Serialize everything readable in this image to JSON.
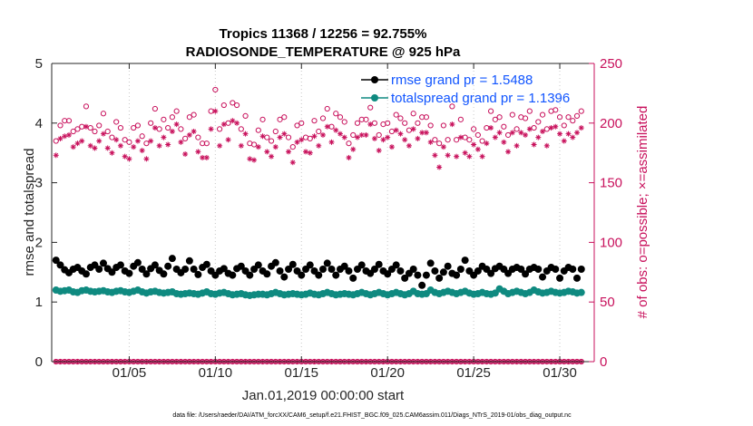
{
  "chart_data": {
    "type": "scatter",
    "title_line1": "Tropics 11368 / 12256 = 92.755%",
    "title_line2": "RADIOSONDE_TEMPERATURE @ 925 hPa",
    "xlabel": "Jan.01,2019 00:00:00 start",
    "ylabel_left": "rmse and totalspread",
    "ylabel_right": "# of obs: o=possible; ×=assimilated",
    "footnote": "data file: /Users/raeder/DAI/ATM_forcXX/CAM6_setup/f.e21.FHIST_BGC.f09_025.CAM6assim.011/Diags_NTrS_2019-01/obs_diag_output.nc",
    "ylim_left": [
      0,
      5
    ],
    "ylim_right": [
      0,
      250
    ],
    "xlim": [
      0.5,
      32.0
    ],
    "yticks_left": [
      "0",
      "1",
      "2",
      "3",
      "4",
      "5"
    ],
    "yticks_right": [
      "0",
      "50",
      "100",
      "150",
      "200",
      "250"
    ],
    "xticks": [
      {
        "day": 5,
        "label": "01/05"
      },
      {
        "day": 10,
        "label": "01/10"
      },
      {
        "day": 15,
        "label": "01/15"
      },
      {
        "day": 20,
        "label": "01/20"
      },
      {
        "day": 25,
        "label": "01/25"
      },
      {
        "day": 30,
        "label": "01/30"
      }
    ],
    "x_start_day": 0.75,
    "x_step_day": 0.25,
    "legend": [
      {
        "label": "rmse grand pr = 1.5488",
        "color": "#000000"
      },
      {
        "label": "totalspread grand pr = 1.1396",
        "color": "#0f8a80"
      }
    ],
    "series": [
      {
        "name": "rmse",
        "axis": "left",
        "color": "#000000",
        "values": [
          1.7,
          1.62,
          1.54,
          1.49,
          1.55,
          1.58,
          1.52,
          1.47,
          1.58,
          1.62,
          1.55,
          1.65,
          1.56,
          1.5,
          1.58,
          1.62,
          1.52,
          1.48,
          1.6,
          1.66,
          1.55,
          1.47,
          1.56,
          1.62,
          1.53,
          1.47,
          1.6,
          1.73,
          1.55,
          1.49,
          1.55,
          1.69,
          1.55,
          1.46,
          1.58,
          1.63,
          1.52,
          1.45,
          1.52,
          1.56,
          1.48,
          1.45,
          1.56,
          1.6,
          1.52,
          1.45,
          1.55,
          1.62,
          1.52,
          1.47,
          1.6,
          1.66,
          1.52,
          1.42,
          1.55,
          1.63,
          1.52,
          1.45,
          1.55,
          1.62,
          1.52,
          1.45,
          1.55,
          1.65,
          1.55,
          1.45,
          1.55,
          1.6,
          1.52,
          1.4,
          1.55,
          1.62,
          1.52,
          1.48,
          1.55,
          1.63,
          1.52,
          1.47,
          1.55,
          1.62,
          1.52,
          1.4,
          1.48,
          1.55,
          1.45,
          1.28,
          1.45,
          1.65,
          1.52,
          1.4,
          1.5,
          1.6,
          1.48,
          1.45,
          1.55,
          1.7,
          1.52,
          1.45,
          1.52,
          1.6,
          1.55,
          1.48,
          1.56,
          1.6,
          1.55,
          1.48,
          1.55,
          1.58,
          1.55,
          1.47,
          1.55,
          1.58,
          1.55,
          1.42,
          1.52,
          1.58,
          1.55,
          1.4,
          1.52,
          1.58,
          1.55,
          1.4,
          1.55
        ]
      },
      {
        "name": "totalspread",
        "axis": "left",
        "color": "#0f8a80",
        "values": [
          1.2,
          1.18,
          1.19,
          1.2,
          1.17,
          1.16,
          1.19,
          1.2,
          1.18,
          1.17,
          1.18,
          1.19,
          1.17,
          1.16,
          1.18,
          1.19,
          1.17,
          1.16,
          1.18,
          1.2,
          1.17,
          1.15,
          1.17,
          1.18,
          1.16,
          1.15,
          1.16,
          1.17,
          1.14,
          1.13,
          1.14,
          1.15,
          1.14,
          1.13,
          1.15,
          1.17,
          1.14,
          1.13,
          1.15,
          1.16,
          1.14,
          1.12,
          1.13,
          1.14,
          1.12,
          1.11,
          1.12,
          1.13,
          1.13,
          1.12,
          1.14,
          1.16,
          1.14,
          1.12,
          1.13,
          1.14,
          1.13,
          1.12,
          1.13,
          1.15,
          1.13,
          1.12,
          1.14,
          1.16,
          1.14,
          1.12,
          1.13,
          1.14,
          1.13,
          1.12,
          1.14,
          1.16,
          1.14,
          1.12,
          1.14,
          1.16,
          1.14,
          1.12,
          1.14,
          1.16,
          1.14,
          1.12,
          1.14,
          1.18,
          1.14,
          1.13,
          1.14,
          1.2,
          1.16,
          1.14,
          1.16,
          1.18,
          1.16,
          1.14,
          1.16,
          1.18,
          1.15,
          1.13,
          1.14,
          1.16,
          1.14,
          1.13,
          1.15,
          1.22,
          1.18,
          1.14,
          1.16,
          1.18,
          1.16,
          1.14,
          1.16,
          1.2,
          1.17,
          1.15,
          1.16,
          1.18,
          1.16,
          1.15,
          1.16,
          1.18,
          1.17,
          1.15,
          1.16
        ]
      },
      {
        "name": "obs possible",
        "axis": "right",
        "marker": "circle",
        "color": "#c8115c",
        "values": [
          185,
          198,
          202,
          202,
          193,
          195,
          197,
          214,
          196,
          193,
          198,
          208,
          193,
          188,
          201,
          196,
          186,
          184,
          196,
          198,
          189,
          183,
          200,
          212,
          195,
          203,
          196,
          205,
          210,
          195,
          187,
          205,
          207,
          188,
          183,
          183,
          210,
          228,
          195,
          215,
          200,
          217,
          215,
          195,
          206,
          183,
          182,
          194,
          203,
          188,
          185,
          193,
          203,
          205,
          188,
          180,
          198,
          200,
          188,
          187,
          202,
          193,
          204,
          212,
          197,
          208,
          205,
          201,
          183,
          190,
          200,
          203,
          203,
          213,
          200,
          190,
          199,
          200,
          193,
          207,
          204,
          200,
          194,
          208,
          200,
          205,
          205,
          198,
          186,
          183,
          198,
          186,
          214,
          186,
          203,
          188,
          186,
          195,
          190,
          185,
          196,
          210,
          203,
          205,
          197,
          190,
          207,
          195,
          205,
          204,
          210,
          196,
          201,
          207,
          195,
          210,
          211,
          205,
          198,
          205,
          202,
          206,
          210
        ]
      },
      {
        "name": "obs assimilated",
        "axis": "right",
        "marker": "asterisk",
        "color": "#c8115c",
        "values": [
          173,
          187,
          189,
          190,
          180,
          183,
          185,
          197,
          181,
          179,
          185,
          191,
          179,
          175,
          186,
          181,
          172,
          170,
          180,
          185,
          177,
          170,
          185,
          196,
          181,
          188,
          182,
          193,
          199,
          184,
          174,
          190,
          193,
          176,
          171,
          171,
          195,
          210,
          181,
          199,
          186,
          202,
          200,
          181,
          191,
          170,
          169,
          180,
          189,
          176,
          172,
          180,
          188,
          191,
          176,
          167,
          184,
          186,
          176,
          175,
          189,
          181,
          190,
          197,
          184,
          194,
          191,
          188,
          171,
          178,
          188,
          190,
          190,
          199,
          187,
          177,
          186,
          188,
          180,
          194,
          191,
          186,
          181,
          195,
          187,
          192,
          192,
          184,
          173,
          163,
          180,
          173,
          199,
          172,
          188,
          175,
          172,
          182,
          178,
          172,
          183,
          196,
          188,
          192,
          184,
          176,
          192,
          181,
          192,
          190,
          195,
          182,
          188,
          193,
          181,
          196,
          197,
          191,
          185,
          191,
          188,
          192,
          196
        ]
      },
      {
        "name": "obs bottom",
        "axis": "right",
        "marker": "circle-asterisk",
        "color": "#c8115c",
        "values": [
          0,
          0,
          0,
          0,
          0,
          0,
          0,
          0,
          0,
          0,
          0,
          0,
          0,
          0,
          0,
          0,
          0,
          0,
          0,
          0,
          0,
          0,
          0,
          0,
          0,
          0,
          0,
          0,
          0,
          0,
          0,
          0,
          0,
          0,
          0,
          0,
          0,
          0,
          0,
          0,
          0,
          0,
          0,
          0,
          0,
          0,
          0,
          0,
          0,
          0,
          0,
          0,
          0,
          0,
          0,
          0,
          0,
          0,
          0,
          0,
          0,
          0,
          0,
          0,
          0,
          0,
          0,
          0,
          0,
          0,
          0,
          0,
          0,
          0,
          0,
          0,
          0,
          0,
          0,
          0,
          0,
          0,
          0,
          0,
          0,
          0,
          0,
          0,
          0,
          0,
          0,
          0,
          0,
          0,
          0,
          0,
          0,
          0,
          0,
          0,
          0,
          0,
          0,
          0,
          0,
          0,
          0,
          0,
          0,
          0,
          0,
          0,
          0,
          0,
          0,
          0,
          0,
          0,
          0,
          0,
          0,
          0,
          0
        ]
      }
    ]
  }
}
